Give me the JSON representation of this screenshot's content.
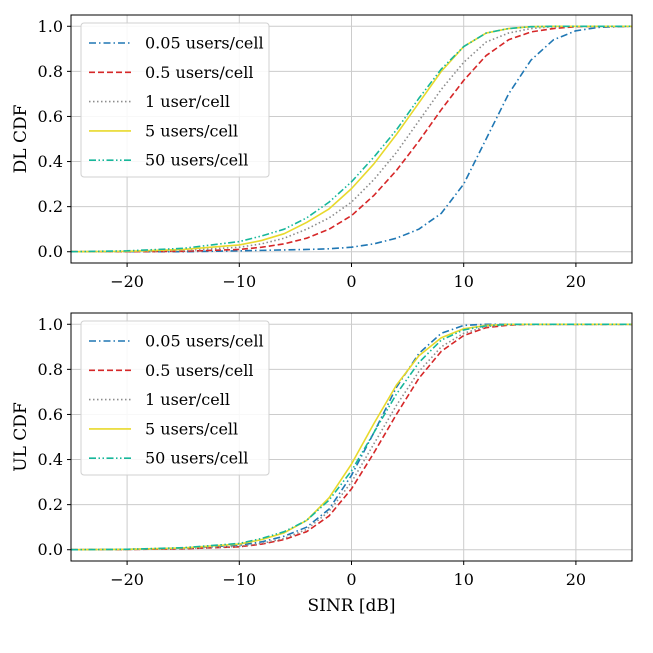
{
  "chart_data": [
    {
      "type": "line",
      "ylabel": "DL CDF",
      "xlabel": "",
      "xlim": [
        -25,
        25
      ],
      "ylim": [
        -0.05,
        1.05
      ],
      "xticks": [
        -20,
        -10,
        0,
        10,
        20
      ],
      "yticks": [
        0.0,
        0.2,
        0.4,
        0.6,
        0.8,
        1.0
      ],
      "xtick_labels": [
        "−20",
        "−10",
        "0",
        "10",
        "20"
      ],
      "ytick_labels": [
        "0.0",
        "0.2",
        "0.4",
        "0.6",
        "0.8",
        "1.0"
      ],
      "grid": true,
      "legend_position": "top-left",
      "x": [
        -25,
        -20,
        -15,
        -10,
        -8,
        -6,
        -4,
        -2,
        0,
        2,
        4,
        6,
        8,
        10,
        12,
        14,
        16,
        18,
        20,
        22,
        25
      ],
      "series": [
        {
          "name": "0.05 users/cell",
          "color": "#1f77b4",
          "dash": "dashdot",
          "values": [
            0.0,
            0.0,
            0.0,
            0.004,
            0.006,
            0.008,
            0.01,
            0.013,
            0.02,
            0.035,
            0.06,
            0.1,
            0.17,
            0.3,
            0.5,
            0.7,
            0.85,
            0.94,
            0.98,
            0.995,
            1.0
          ]
        },
        {
          "name": "0.5 users/cell",
          "color": "#d62728",
          "dash": "dashed",
          "values": [
            0.0,
            0.0,
            0.002,
            0.01,
            0.02,
            0.035,
            0.06,
            0.1,
            0.16,
            0.25,
            0.36,
            0.49,
            0.63,
            0.76,
            0.87,
            0.94,
            0.975,
            0.99,
            0.998,
            1.0,
            1.0
          ]
        },
        {
          "name": "1 user/cell",
          "color": "#8c8c8c",
          "dash": "dotted",
          "values": [
            0.0,
            0.001,
            0.005,
            0.02,
            0.035,
            0.06,
            0.1,
            0.15,
            0.22,
            0.32,
            0.44,
            0.58,
            0.72,
            0.84,
            0.93,
            0.97,
            0.99,
            0.998,
            1.0,
            1.0,
            1.0
          ]
        },
        {
          "name": "5 users/cell",
          "color": "#e8d92c",
          "dash": "solid",
          "values": [
            0.0,
            0.002,
            0.01,
            0.03,
            0.05,
            0.08,
            0.13,
            0.19,
            0.28,
            0.39,
            0.52,
            0.66,
            0.8,
            0.91,
            0.97,
            0.99,
            0.998,
            1.0,
            1.0,
            1.0,
            1.0
          ]
        },
        {
          "name": "50 users/cell",
          "color": "#17b79a",
          "dash": "dashdotdot",
          "values": [
            0.0,
            0.004,
            0.015,
            0.045,
            0.07,
            0.1,
            0.15,
            0.22,
            0.31,
            0.42,
            0.54,
            0.68,
            0.81,
            0.91,
            0.97,
            0.99,
            0.998,
            1.0,
            1.0,
            1.0,
            1.0
          ]
        }
      ]
    },
    {
      "type": "line",
      "ylabel": "UL CDF",
      "xlabel": "SINR [dB]",
      "xlim": [
        -25,
        25
      ],
      "ylim": [
        -0.05,
        1.05
      ],
      "xticks": [
        -20,
        -10,
        0,
        10,
        20
      ],
      "yticks": [
        0.0,
        0.2,
        0.4,
        0.6,
        0.8,
        1.0
      ],
      "xtick_labels": [
        "−20",
        "−10",
        "0",
        "10",
        "20"
      ],
      "ytick_labels": [
        "0.0",
        "0.2",
        "0.4",
        "0.6",
        "0.8",
        "1.0"
      ],
      "grid": true,
      "legend_position": "top-left",
      "x": [
        -25,
        -20,
        -15,
        -10,
        -8,
        -6,
        -4,
        -2,
        0,
        2,
        4,
        6,
        8,
        10,
        12,
        14,
        16,
        18,
        20,
        22,
        25
      ],
      "series": [
        {
          "name": "0.05 users/cell",
          "color": "#1f77b4",
          "dash": "dashdot",
          "values": [
            0.0,
            0.002,
            0.007,
            0.02,
            0.035,
            0.06,
            0.1,
            0.18,
            0.33,
            0.52,
            0.72,
            0.87,
            0.96,
            0.995,
            1.0,
            1.0,
            1.0,
            1.0,
            1.0,
            1.0,
            1.0
          ]
        },
        {
          "name": "0.5 users/cell",
          "color": "#d62728",
          "dash": "dashed",
          "values": [
            0.0,
            0.001,
            0.004,
            0.013,
            0.025,
            0.045,
            0.08,
            0.15,
            0.27,
            0.43,
            0.6,
            0.76,
            0.88,
            0.95,
            0.985,
            0.996,
            1.0,
            1.0,
            1.0,
            1.0,
            1.0
          ]
        },
        {
          "name": "1 user/cell",
          "color": "#8c8c8c",
          "dash": "dotted",
          "values": [
            0.0,
            0.001,
            0.005,
            0.015,
            0.028,
            0.05,
            0.09,
            0.17,
            0.3,
            0.47,
            0.64,
            0.79,
            0.9,
            0.96,
            0.99,
            0.998,
            1.0,
            1.0,
            1.0,
            1.0,
            1.0
          ]
        },
        {
          "name": "5 users/cell",
          "color": "#e8d92c",
          "dash": "solid",
          "values": [
            0.0,
            0.002,
            0.008,
            0.025,
            0.045,
            0.075,
            0.13,
            0.23,
            0.38,
            0.56,
            0.73,
            0.86,
            0.94,
            0.98,
            0.995,
            1.0,
            1.0,
            1.0,
            1.0,
            1.0,
            1.0
          ]
        },
        {
          "name": "50 users/cell",
          "color": "#17b79a",
          "dash": "dashdotdot",
          "values": [
            0.0,
            0.002,
            0.009,
            0.028,
            0.05,
            0.08,
            0.13,
            0.22,
            0.35,
            0.52,
            0.69,
            0.83,
            0.93,
            0.975,
            0.993,
            1.0,
            1.0,
            1.0,
            1.0,
            1.0,
            1.0
          ]
        }
      ]
    }
  ]
}
